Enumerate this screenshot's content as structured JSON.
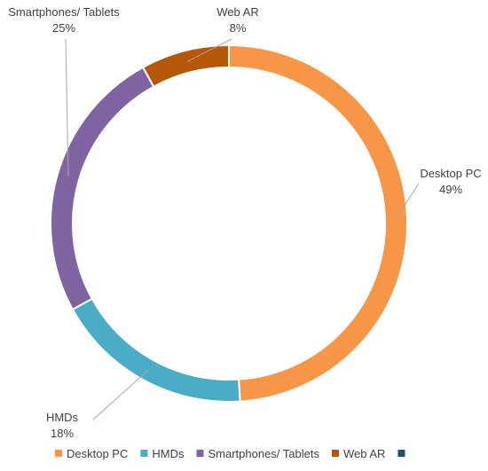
{
  "chart_data": {
    "type": "pie",
    "variant": "donut",
    "categories": [
      "Desktop PC",
      "HMDs",
      "Smartphones/ Tablets",
      "Web AR"
    ],
    "values": [
      49,
      18,
      25,
      8
    ],
    "value_labels": [
      "49%",
      "18%",
      "25%",
      "8%"
    ],
    "colors": [
      "#F79646",
      "#4BACC6",
      "#8064A2",
      "#B65708"
    ],
    "legend": {
      "placement": "bottom",
      "entries": [
        {
          "label": "Desktop PC",
          "color": "#F79646"
        },
        {
          "label": "HMDs",
          "color": "#4BACC6"
        },
        {
          "label": "Smartphones/ Tablets",
          "color": "#8064A2"
        },
        {
          "label": "Web AR",
          "color": "#B65708"
        },
        {
          "label": "",
          "color": "#1F4E79"
        }
      ]
    }
  }
}
